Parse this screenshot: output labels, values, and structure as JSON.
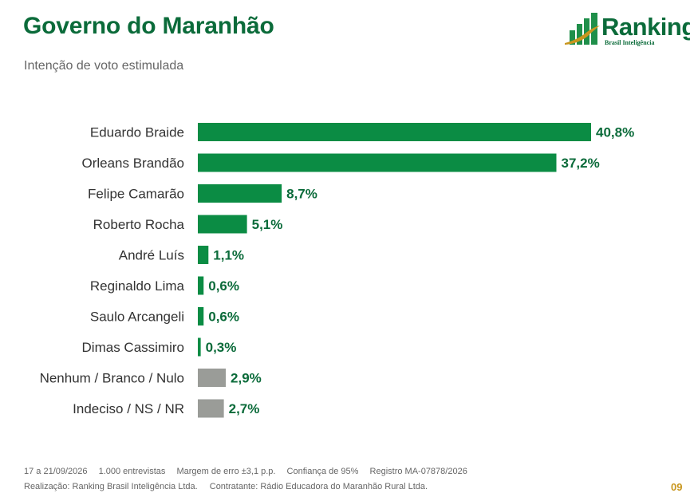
{
  "header": {
    "title": "Governo do Maranhão",
    "subtitle": "Intenção de voto estimulada"
  },
  "logo": {
    "name": "Ranking",
    "tagline": "Brasil Inteligência"
  },
  "colors": {
    "title": "#0b6b3a",
    "bar_candidate": "#0b8c44",
    "bar_other": "#9a9c98",
    "value_text": "#0b6b3a",
    "page_number": "#c8961e"
  },
  "chart_data": {
    "type": "bar",
    "orientation": "horizontal",
    "title": "",
    "xlabel": "",
    "ylabel": "",
    "categories": [
      "Eduardo Braide",
      "Orleans Brandão",
      "Felipe Camarão",
      "Roberto Rocha",
      "André Luís",
      "Reginaldo Lima",
      "Saulo Arcangeli",
      "Dimas Cassimiro",
      "Nenhum / Branco / Nulo",
      "Indeciso / NS / NR"
    ],
    "values": [
      40.8,
      37.2,
      8.7,
      5.1,
      1.1,
      0.6,
      0.6,
      0.3,
      2.9,
      2.7
    ],
    "value_labels": [
      "40,8%",
      "37,2%",
      "8,7%",
      "5,1%",
      "1,1%",
      "0,6%",
      "0,6%",
      "0,3%",
      "2,9%",
      "2,7%"
    ],
    "bar_kinds": [
      "candidate",
      "candidate",
      "candidate",
      "candidate",
      "candidate",
      "candidate",
      "candidate",
      "candidate",
      "other",
      "other"
    ],
    "unit": "%",
    "grid": false,
    "legend": "none"
  },
  "footer": {
    "line1": [
      "17 a 21/09/2026",
      "1.000 entrevistas",
      "Margem de erro ±3,1 p.p.",
      "Confiança de 95%",
      "Registro MA-07878/2026"
    ],
    "line2": [
      "Realização: Ranking Brasil Inteligência Ltda.",
      "Contratante: Rádio Educadora do Maranhão Rural Ltda."
    ],
    "page_number": "09"
  }
}
